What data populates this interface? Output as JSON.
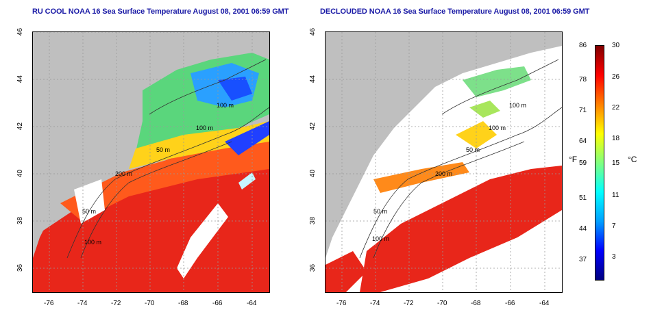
{
  "left_panel": {
    "title": "RU COOL NOAA 16 Sea Surface Temperature August 08, 2001 06:59 GMT"
  },
  "right_panel": {
    "title": "DECLOUDED NOAA 16 Sea Surface Temperature August 08, 2001 06:59 GMT"
  },
  "axes": {
    "lon_ticks": [
      "-76",
      "-74",
      "-72",
      "-70",
      "-68",
      "-66",
      "-64"
    ],
    "lat_ticks": [
      "46",
      "44",
      "42",
      "40",
      "38",
      "36"
    ],
    "lon_range": [
      -77,
      -63
    ],
    "lat_range": [
      35,
      46
    ]
  },
  "contours": [
    "100 m",
    "100 m",
    "50 m",
    "200 m",
    "50 m",
    "100 m"
  ],
  "colorbar": {
    "f_ticks": [
      "86",
      "78",
      "71",
      "64",
      "59",
      "51",
      "44",
      "37"
    ],
    "c_ticks": [
      "30",
      "26",
      "22",
      "18",
      "15",
      "11",
      "7",
      "3"
    ],
    "f_unit": "°F",
    "c_unit": "°C",
    "colors": [
      "#000080",
      "#0000ff",
      "#00a0ff",
      "#00ffff",
      "#80ff80",
      "#ffff00",
      "#ff8000",
      "#ff0000",
      "#800000"
    ]
  }
}
